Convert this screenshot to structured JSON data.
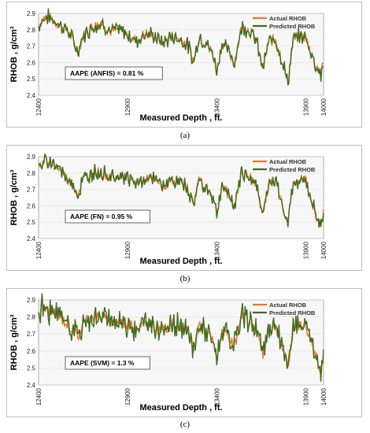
{
  "chart_data": [
    {
      "type": "line",
      "caption": "(a)",
      "ylabel": "RHOB , g/cm³",
      "xlabel": "Measured Depth  , ft.",
      "xlim": [
        12400,
        14000
      ],
      "ylim": [
        2.4,
        2.9
      ],
      "xticks": [
        "12400",
        "12900",
        "13400",
        "13900",
        "14000"
      ],
      "yticks": [
        "2.4",
        "2.5",
        "2.6",
        "2.7",
        "2.8",
        "2.9"
      ],
      "annotation": "AAPE (ANFIS) = 0.81 %",
      "legend_position": "top-right",
      "series": [
        {
          "name": "Actual RHOB",
          "color": "#E87722"
        },
        {
          "name": "Predicted RHOB",
          "color": "#3F6B1F"
        }
      ],
      "keypoints": [
        [
          12400,
          2.82
        ],
        [
          12420,
          2.86
        ],
        [
          12450,
          2.88
        ],
        [
          12480,
          2.86
        ],
        [
          12520,
          2.83
        ],
        [
          12560,
          2.8
        ],
        [
          12600,
          2.72
        ],
        [
          12620,
          2.66
        ],
        [
          12650,
          2.76
        ],
        [
          12700,
          2.82
        ],
        [
          12760,
          2.84
        ],
        [
          12800,
          2.79
        ],
        [
          12850,
          2.8
        ],
        [
          12900,
          2.77
        ],
        [
          12950,
          2.73
        ],
        [
          13000,
          2.78
        ],
        [
          13050,
          2.76
        ],
        [
          13100,
          2.72
        ],
        [
          13150,
          2.76
        ],
        [
          13200,
          2.74
        ],
        [
          13240,
          2.7
        ],
        [
          13270,
          2.6
        ],
        [
          13300,
          2.76
        ],
        [
          13340,
          2.72
        ],
        [
          13380,
          2.65
        ],
        [
          13400,
          2.55
        ],
        [
          13430,
          2.72
        ],
        [
          13460,
          2.68
        ],
        [
          13500,
          2.6
        ],
        [
          13540,
          2.82
        ],
        [
          13580,
          2.8
        ],
        [
          13620,
          2.74
        ],
        [
          13660,
          2.56
        ],
        [
          13690,
          2.72
        ],
        [
          13730,
          2.75
        ],
        [
          13770,
          2.6
        ],
        [
          13800,
          2.48
        ],
        [
          13830,
          2.74
        ],
        [
          13870,
          2.76
        ],
        [
          13900,
          2.75
        ],
        [
          13930,
          2.66
        ],
        [
          13950,
          2.6
        ],
        [
          13970,
          2.56
        ],
        [
          13985,
          2.52
        ],
        [
          14000,
          2.6
        ]
      ],
      "seed": 7
    },
    {
      "type": "line",
      "caption": "(b)",
      "ylabel": "RHOB , g/cm³",
      "xlabel": "Measured Depth  , ft.",
      "xlim": [
        12400,
        14000
      ],
      "ylim": [
        2.4,
        2.9
      ],
      "xticks": [
        "12400",
        "12900",
        "13400",
        "13900",
        "14000"
      ],
      "yticks": [
        "2.4",
        "2.5",
        "2.6",
        "2.7",
        "2.8",
        "2.9"
      ],
      "annotation": "AAPE (FN) = 0.95 %",
      "legend_position": "top-right",
      "series": [
        {
          "name": "Actual RHOB",
          "color": "#E87722"
        },
        {
          "name": "Predicted RHOB",
          "color": "#3F6B1F"
        }
      ],
      "keypoints": [
        [
          12400,
          2.82
        ],
        [
          12420,
          2.86
        ],
        [
          12450,
          2.88
        ],
        [
          12480,
          2.86
        ],
        [
          12520,
          2.82
        ],
        [
          12560,
          2.76
        ],
        [
          12600,
          2.72
        ],
        [
          12620,
          2.66
        ],
        [
          12650,
          2.76
        ],
        [
          12700,
          2.8
        ],
        [
          12760,
          2.8
        ],
        [
          12800,
          2.78
        ],
        [
          12850,
          2.79
        ],
        [
          12900,
          2.77
        ],
        [
          12950,
          2.73
        ],
        [
          13000,
          2.77
        ],
        [
          13050,
          2.76
        ],
        [
          13100,
          2.72
        ],
        [
          13150,
          2.76
        ],
        [
          13200,
          2.74
        ],
        [
          13240,
          2.7
        ],
        [
          13270,
          2.6
        ],
        [
          13300,
          2.76
        ],
        [
          13340,
          2.72
        ],
        [
          13380,
          2.65
        ],
        [
          13400,
          2.55
        ],
        [
          13430,
          2.72
        ],
        [
          13460,
          2.68
        ],
        [
          13500,
          2.6
        ],
        [
          13540,
          2.8
        ],
        [
          13580,
          2.78
        ],
        [
          13620,
          2.74
        ],
        [
          13660,
          2.56
        ],
        [
          13690,
          2.72
        ],
        [
          13730,
          2.75
        ],
        [
          13770,
          2.6
        ],
        [
          13800,
          2.5
        ],
        [
          13830,
          2.74
        ],
        [
          13870,
          2.76
        ],
        [
          13900,
          2.75
        ],
        [
          13930,
          2.64
        ],
        [
          13950,
          2.58
        ],
        [
          13970,
          2.5
        ],
        [
          13985,
          2.46
        ],
        [
          14000,
          2.58
        ]
      ],
      "seed": 19
    },
    {
      "type": "line",
      "caption": "(c)",
      "ylabel": "RHOB , g/cm³",
      "xlabel": "Measured Depth , ft.",
      "xlim": [
        12400,
        14000
      ],
      "ylim": [
        2.4,
        2.9
      ],
      "xticks": [
        "12400",
        "12900",
        "13400",
        "13900",
        "14000"
      ],
      "yticks": [
        "2.4",
        "2.5",
        "2.6",
        "2.7",
        "2.8",
        "2.9"
      ],
      "annotation": "AAPE (SVM) = 1.3 %",
      "legend_position": "top-right",
      "series": [
        {
          "name": "Actual RHOB",
          "color": "#E87722"
        },
        {
          "name": "Predicted RHOB",
          "color": "#3F6B1F"
        }
      ],
      "keypoints": [
        [
          12400,
          2.82
        ],
        [
          12420,
          2.86
        ],
        [
          12450,
          2.84
        ],
        [
          12480,
          2.82
        ],
        [
          12520,
          2.8
        ],
        [
          12560,
          2.76
        ],
        [
          12600,
          2.72
        ],
        [
          12620,
          2.68
        ],
        [
          12650,
          2.76
        ],
        [
          12700,
          2.8
        ],
        [
          12760,
          2.8
        ],
        [
          12800,
          2.77
        ],
        [
          12850,
          2.78
        ],
        [
          12900,
          2.76
        ],
        [
          12950,
          2.73
        ],
        [
          13000,
          2.76
        ],
        [
          13050,
          2.75
        ],
        [
          13100,
          2.72
        ],
        [
          13150,
          2.76
        ],
        [
          13200,
          2.74
        ],
        [
          13240,
          2.7
        ],
        [
          13270,
          2.6
        ],
        [
          13300,
          2.76
        ],
        [
          13340,
          2.72
        ],
        [
          13380,
          2.65
        ],
        [
          13400,
          2.56
        ],
        [
          13430,
          2.72
        ],
        [
          13460,
          2.68
        ],
        [
          13500,
          2.62
        ],
        [
          13540,
          2.8
        ],
        [
          13580,
          2.78
        ],
        [
          13620,
          2.74
        ],
        [
          13660,
          2.58
        ],
        [
          13690,
          2.72
        ],
        [
          13730,
          2.75
        ],
        [
          13770,
          2.62
        ],
        [
          13800,
          2.5
        ],
        [
          13830,
          2.74
        ],
        [
          13870,
          2.76
        ],
        [
          13900,
          2.75
        ],
        [
          13930,
          2.66
        ],
        [
          13950,
          2.6
        ],
        [
          13970,
          2.54
        ],
        [
          13985,
          2.48
        ],
        [
          14000,
          2.56
        ]
      ],
      "seed": 31
    }
  ]
}
